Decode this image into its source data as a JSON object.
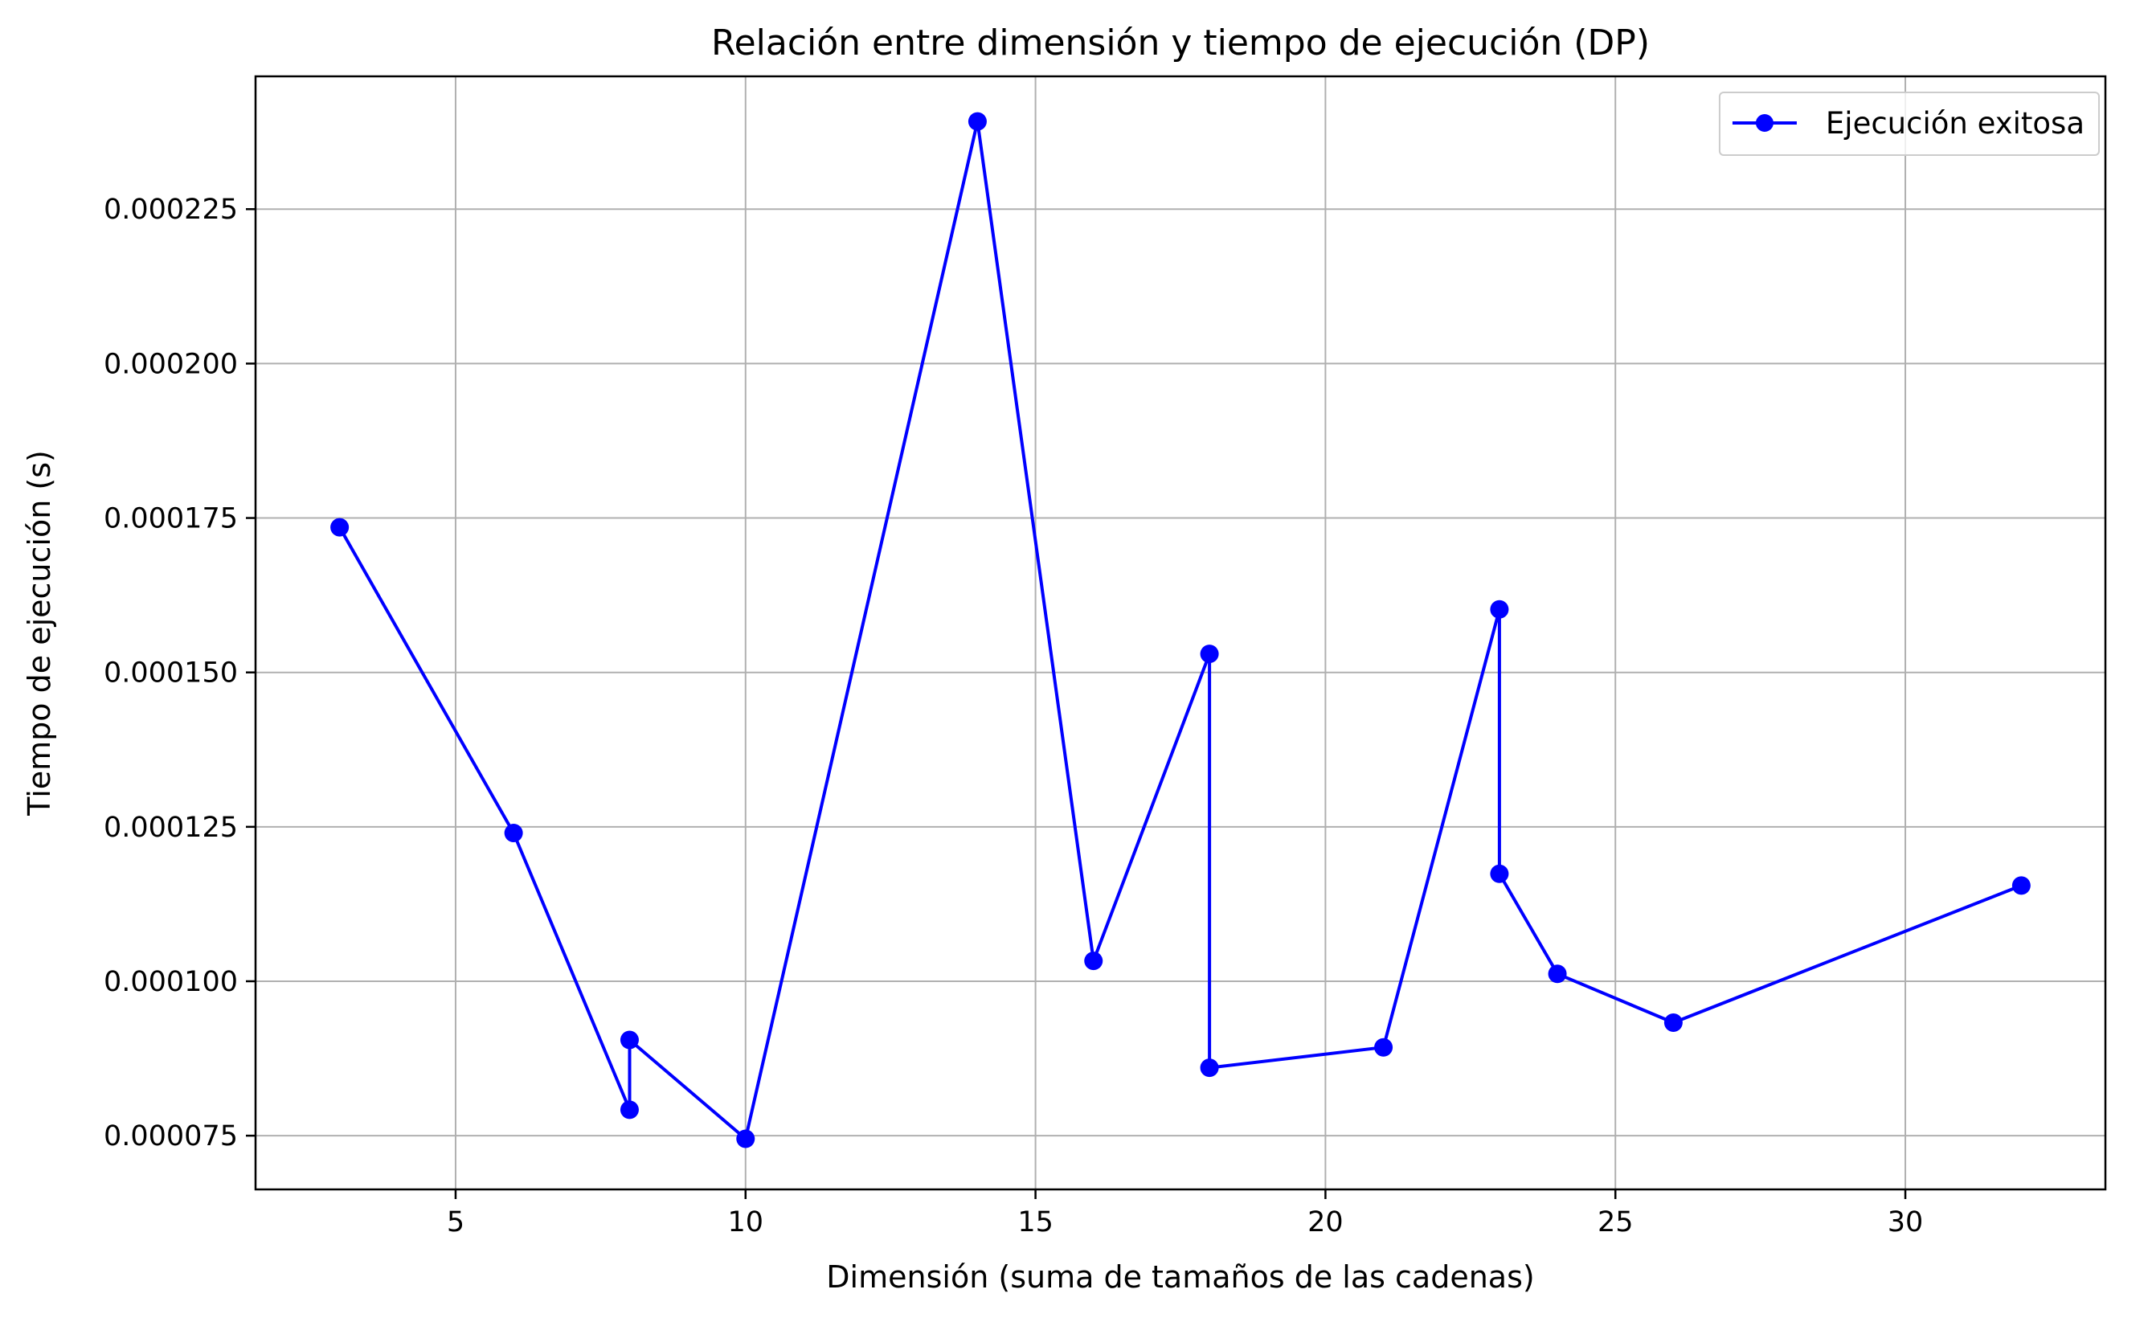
{
  "chart_data": {
    "type": "line",
    "title": "Relación entre dimensión y tiempo de ejecución (DP)",
    "xlabel": "Dimensión (suma de tamaños de las cadenas)",
    "ylabel": "Tiempo de ejecución (s)",
    "xlim": [
      1.55,
      33.45
    ],
    "ylim": [
      6.63e-05,
      0.0002465
    ],
    "xticks": [
      5,
      10,
      15,
      20,
      25,
      30
    ],
    "xtick_labels": [
      "5",
      "10",
      "15",
      "20",
      "25",
      "30"
    ],
    "yticks": [
      7.5e-05,
      0.0001,
      0.000125,
      0.00015,
      0.000175,
      0.0002,
      0.000225
    ],
    "ytick_labels": [
      "0.000075",
      "0.000100",
      "0.000125",
      "0.000150",
      "0.000175",
      "0.000200",
      "0.000225"
    ],
    "grid": true,
    "legend_position": "top-right",
    "series": [
      {
        "name": "Ejecución exitosa",
        "color": "#0000ff",
        "marker": "circle",
        "x": [
          3,
          6,
          8,
          8,
          10,
          14,
          16,
          18,
          18,
          21,
          23,
          23,
          24,
          26,
          32
        ],
        "y": [
          0.0001735,
          0.000124,
          7.92e-05,
          9.05e-05,
          7.45e-05,
          0.0002392,
          0.0001033,
          0.000153,
          8.6e-05,
          8.93e-05,
          0.0001602,
          0.0001174,
          0.0001012,
          9.33e-05,
          0.0001155
        ]
      }
    ]
  }
}
